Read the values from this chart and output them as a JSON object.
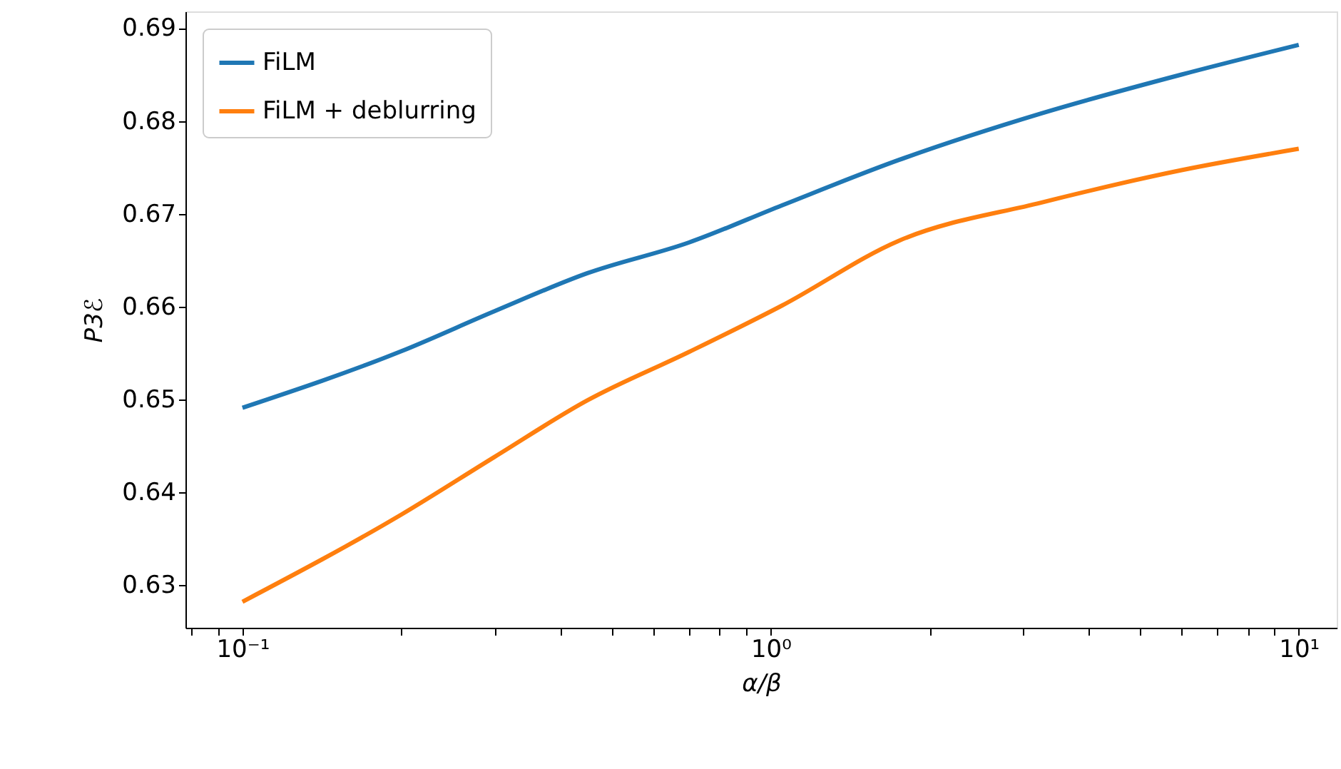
{
  "chart_data": {
    "type": "line",
    "xlabel": "α/β",
    "ylabel": "P3ℰ",
    "log": "x",
    "x": [
      0.1,
      0.2,
      0.3,
      0.45,
      0.7,
      1.05,
      1.75,
      3.25,
      6,
      10
    ],
    "series": [
      {
        "name": "FiLM",
        "color": "#1f77b4",
        "values": [
          0.6491,
          0.6552,
          0.6595,
          0.6636,
          0.6669,
          0.6709,
          0.6758,
          0.6808,
          0.685,
          0.6882
        ]
      },
      {
        "name": "FiLM + deblurring",
        "color": "#ff7f0e",
        "values": [
          0.6282,
          0.6376,
          0.6438,
          0.6499,
          0.6551,
          0.6601,
          0.6671,
          0.6712,
          0.6747,
          0.677
        ]
      }
    ],
    "xlim": [
      0.078,
      11.8
    ],
    "ylim": [
      0.6254,
      0.6918
    ],
    "xticks": [
      {
        "value": 0.08,
        "label": null
      },
      {
        "value": 0.09,
        "label": null
      },
      {
        "value": 0.1,
        "label": "10⁻¹"
      },
      {
        "value": 0.2,
        "label": null
      },
      {
        "value": 0.3,
        "label": null
      },
      {
        "value": 0.4,
        "label": null
      },
      {
        "value": 0.5,
        "label": null
      },
      {
        "value": 0.6,
        "label": null
      },
      {
        "value": 0.7,
        "label": null
      },
      {
        "value": 0.8,
        "label": null
      },
      {
        "value": 0.9,
        "label": null
      },
      {
        "value": 1,
        "label": "10⁰"
      },
      {
        "value": 2,
        "label": null
      },
      {
        "value": 3,
        "label": null
      },
      {
        "value": 4,
        "label": null
      },
      {
        "value": 5,
        "label": null
      },
      {
        "value": 6,
        "label": null
      },
      {
        "value": 7,
        "label": null
      },
      {
        "value": 8,
        "label": null
      },
      {
        "value": 9,
        "label": null
      },
      {
        "value": 10,
        "label": "10¹"
      }
    ],
    "yticks": [
      0.63,
      0.64,
      0.65,
      0.66,
      0.67,
      0.68,
      0.69
    ],
    "grid": false,
    "legend": "top left",
    "marker": "none",
    "line_style": "solid"
  }
}
